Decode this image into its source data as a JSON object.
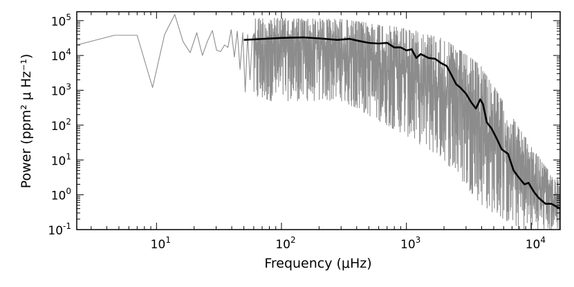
{
  "chart_data": {
    "type": "line",
    "title": "",
    "xlabel": "Frequency (μHz)",
    "ylabel": "Power (ppm² μ Hz⁻¹)",
    "xscale": "log",
    "yscale": "log",
    "xlim": [
      2.3,
      17000
    ],
    "ylim": [
      0.1,
      180000
    ],
    "grid": false,
    "x_ticks": [
      {
        "value": 10,
        "base": "10",
        "exp": "1"
      },
      {
        "value": 100,
        "base": "10",
        "exp": "2"
      },
      {
        "value": 1000,
        "base": "10",
        "exp": "3"
      },
      {
        "value": 10000,
        "base": "10",
        "exp": "4"
      }
    ],
    "y_ticks": [
      {
        "value": 0.1,
        "base": "10",
        "exp": "-1"
      },
      {
        "value": 1,
        "base": "10",
        "exp": "0"
      },
      {
        "value": 10,
        "base": "10",
        "exp": "1"
      },
      {
        "value": 100,
        "base": "10",
        "exp": "2"
      },
      {
        "value": 1000,
        "base": "10",
        "exp": "3"
      },
      {
        "value": 10000,
        "base": "10",
        "exp": "4"
      },
      {
        "value": 100000,
        "base": "10",
        "exp": "5"
      }
    ],
    "series": [
      {
        "role": "raw power spectrum",
        "color": "#8c8c8c",
        "x": [
          2.3,
          4.6,
          7.0,
          9.3,
          11.6,
          14.0,
          16.3,
          18.6,
          21.0,
          23.3,
          25.6,
          28.0,
          30.3,
          32.6,
          35.0,
          37.3,
          39.6,
          42.0,
          44.3,
          46.6,
          49.0,
          51.3,
          53.6,
          56.0,
          58.3
        ],
        "y": [
          20000,
          38000,
          38000,
          1200,
          40000,
          150000,
          25000,
          12000,
          45000,
          10000,
          26000,
          52000,
          14000,
          13000,
          20000,
          17000,
          55000,
          9000,
          50000,
          4000,
          45000,
          900,
          40000,
          2000,
          30000
        ],
        "noise": {
          "x_start": 60,
          "x_end": 17000,
          "n_points": 1100,
          "upper_envelope": [
            [
              60,
              120000
            ],
            [
              300,
              110000
            ],
            [
              1000,
              60000
            ],
            [
              2000,
              30000
            ],
            [
              4000,
              5000
            ],
            [
              8000,
              80
            ],
            [
              15000,
              3
            ]
          ],
          "lower_envelope": [
            [
              60,
              500
            ],
            [
              300,
              500
            ],
            [
              1000,
              50
            ],
            [
              2000,
              10
            ],
            [
              4000,
              0.5
            ],
            [
              8000,
              0.1
            ],
            [
              15000,
              0.1
            ]
          ]
        }
      },
      {
        "role": "smoothed power spectrum",
        "color": "#000000",
        "x": [
          50,
          100,
          150,
          200,
          280,
          350,
          420,
          500,
          600,
          700,
          800,
          900,
          1000,
          1100,
          1200,
          1300,
          1500,
          1700,
          1900,
          2100,
          2300,
          2500,
          2700,
          3000,
          3300,
          3600,
          3900,
          4100,
          4400,
          4800,
          5300,
          5800,
          6500,
          7200,
          8000,
          8800,
          9500,
          10500,
          11500,
          13000,
          14500,
          16000,
          17000
        ],
        "y": [
          28000,
          32000,
          33000,
          31000,
          28000,
          30000,
          26000,
          23000,
          22000,
          23000,
          17000,
          17000,
          14000,
          15000,
          8500,
          11000,
          8500,
          8000,
          6000,
          5000,
          2700,
          1500,
          1200,
          800,
          450,
          300,
          550,
          400,
          120,
          80,
          40,
          20,
          15,
          5,
          3,
          2,
          2.2,
          1.2,
          0.8,
          0.55,
          0.55,
          0.45,
          0.4
        ]
      }
    ]
  }
}
